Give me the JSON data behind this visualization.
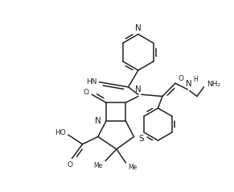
{
  "bg": "#ffffff",
  "lc": "#222222",
  "lw": 1.1,
  "fs": 6.5,
  "fw": 2.91,
  "fh": 2.38,
  "dpi": 100,
  "xlim": [
    0,
    291
  ],
  "ylim": [
    0,
    238
  ]
}
